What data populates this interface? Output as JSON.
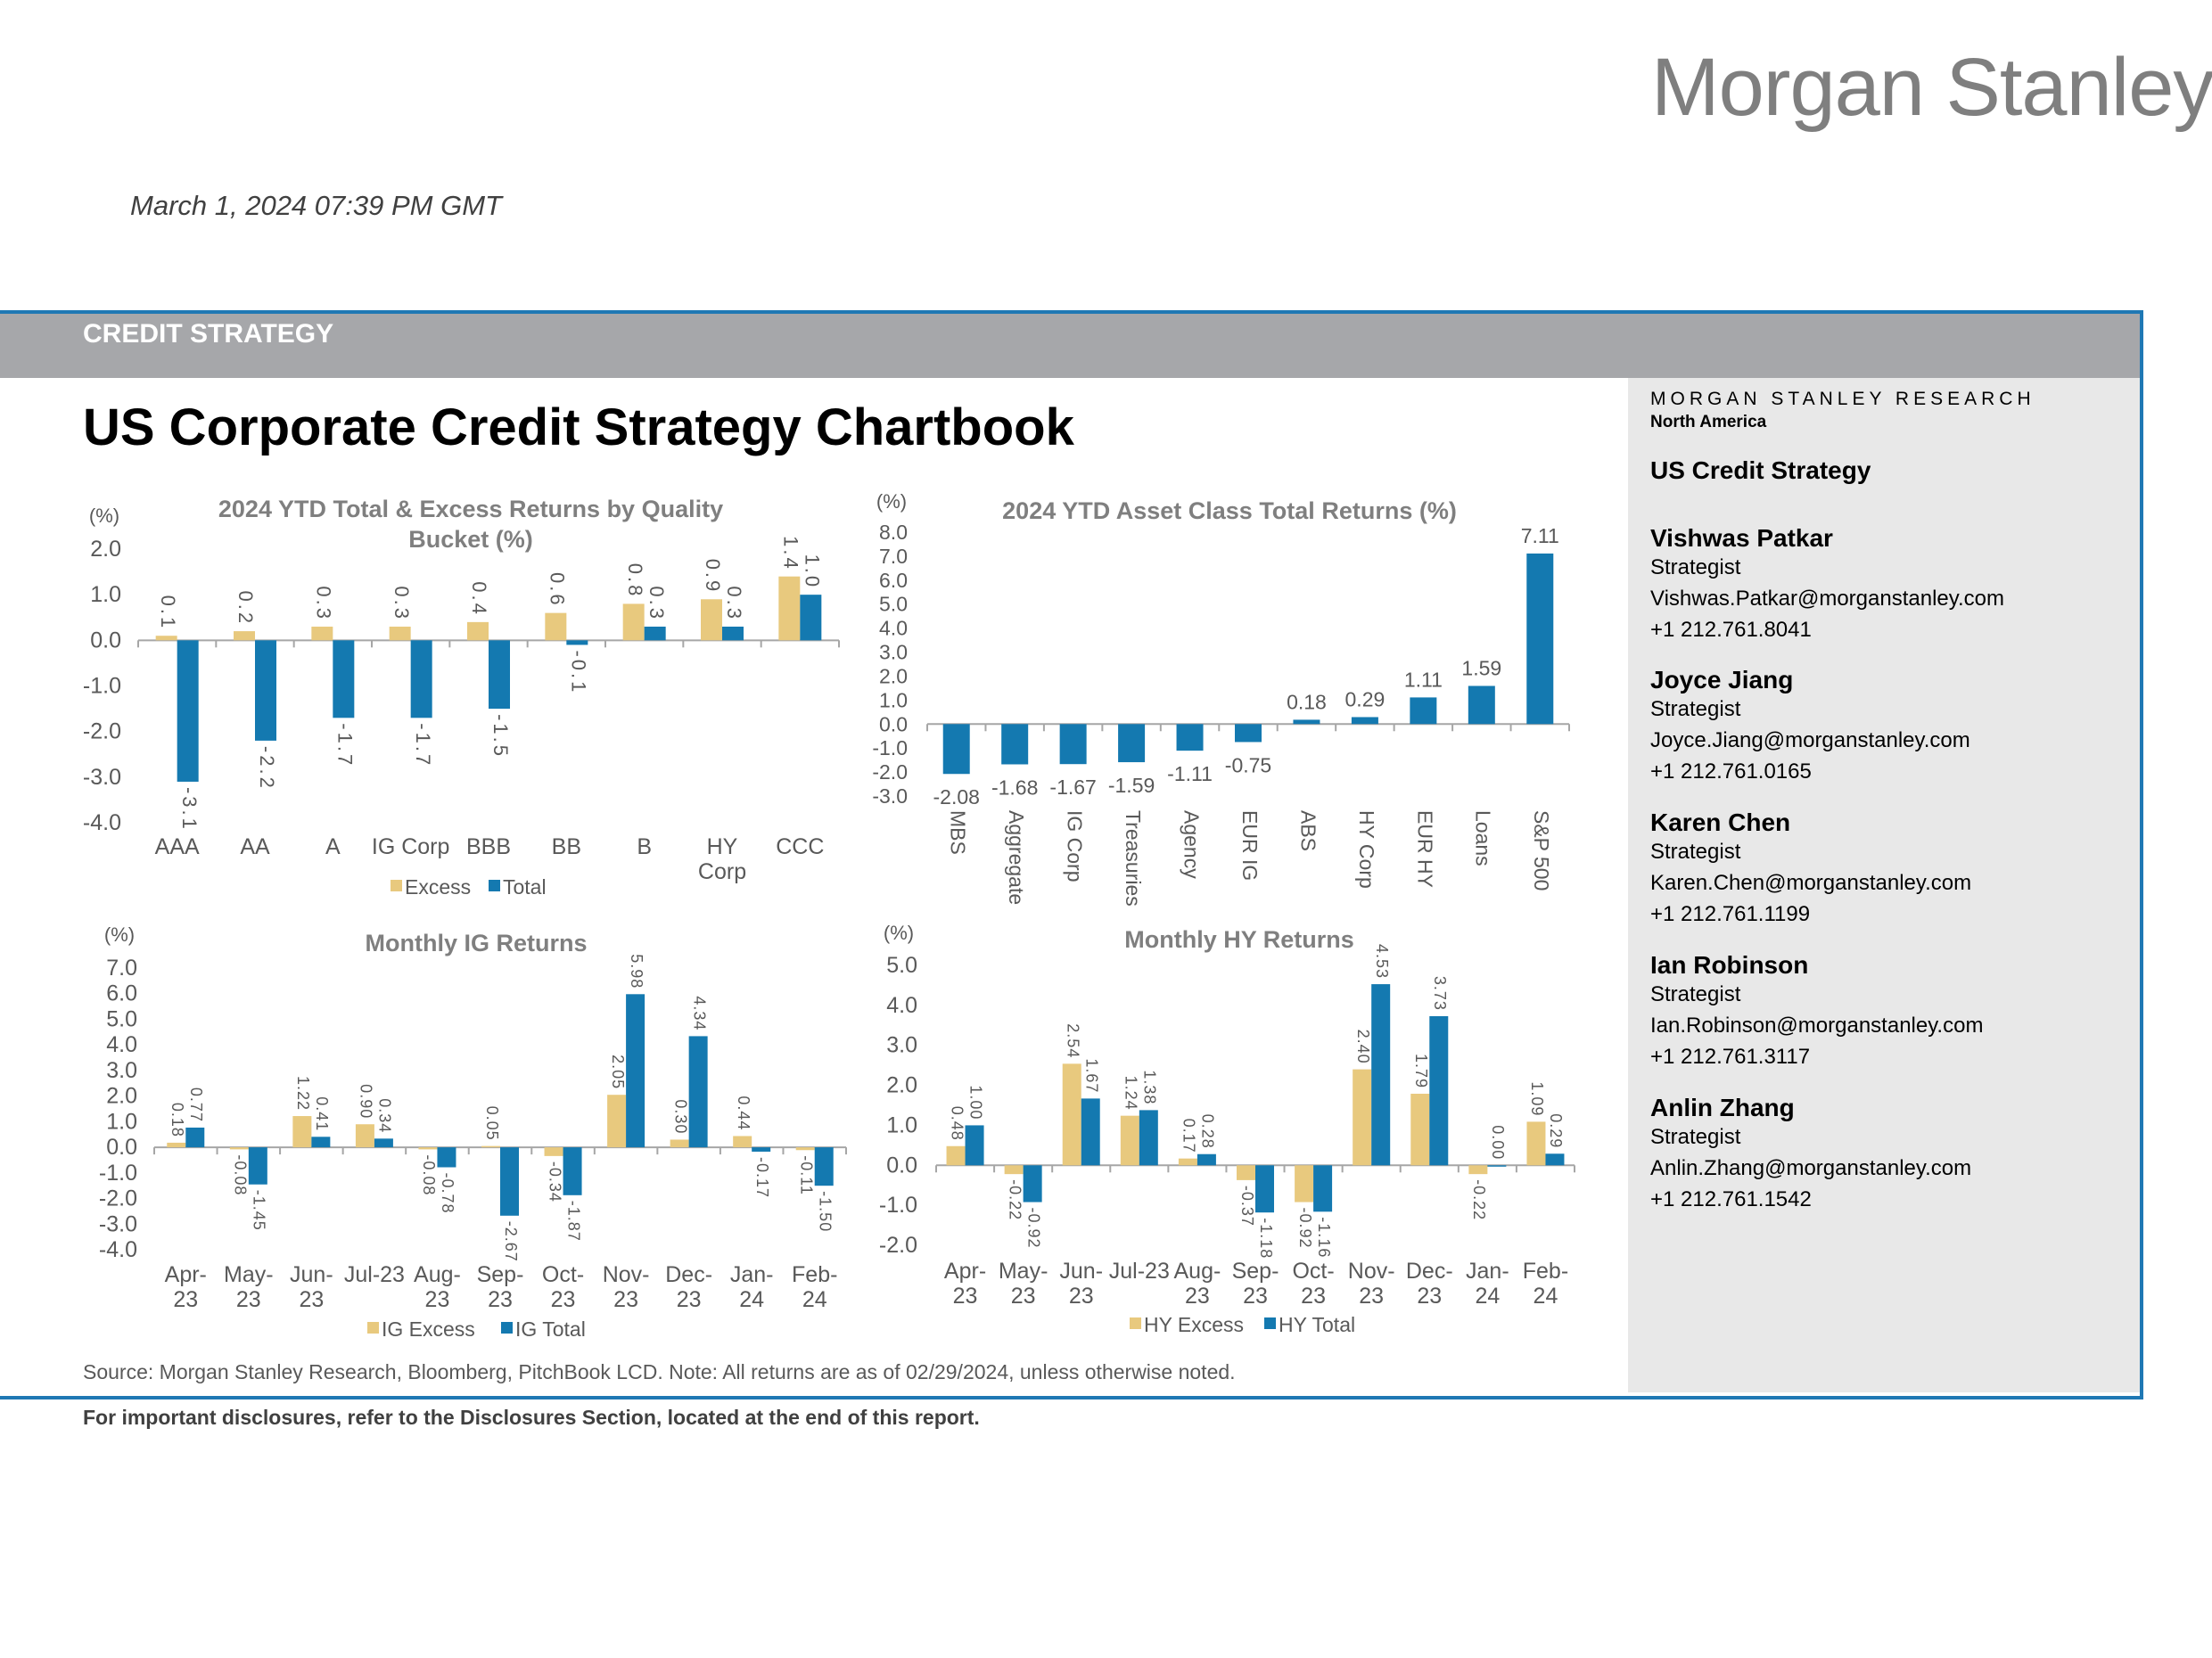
{
  "header": {
    "logo": "Morgan Stanley",
    "date": "March 1, 2024 07:39 PM GMT",
    "band_label": "CREDIT STRATEGY",
    "title": "US Corporate Credit Strategy Chartbook"
  },
  "sidebar": {
    "research": "MORGAN STANLEY RESEARCH",
    "region": "North America",
    "team": "US Credit Strategy",
    "contacts": [
      {
        "name": "Vishwas Patkar",
        "role": "Strategist",
        "email": "Vishwas.Patkar@morganstanley.com",
        "phone": "+1 212.761.8041"
      },
      {
        "name": "Joyce Jiang",
        "role": "Strategist",
        "email": "Joyce.Jiang@morganstanley.com",
        "phone": "+1 212.761.0165"
      },
      {
        "name": "Karen Chen",
        "role": "Strategist",
        "email": "Karen.Chen@morganstanley.com",
        "phone": "+1 212.761.1199"
      },
      {
        "name": "Ian Robinson",
        "role": "Strategist",
        "email": "Ian.Robinson@morganstanley.com",
        "phone": "+1 212.761.3117"
      },
      {
        "name": "Anlin Zhang",
        "role": "Strategist",
        "email": "Anlin.Zhang@morganstanley.com",
        "phone": "+1 212.761.1542"
      }
    ]
  },
  "footer": {
    "source": "Source: Morgan Stanley Research, Bloomberg, PitchBook LCD. Note: All returns are as of 02/29/2024, unless otherwise noted.",
    "disclosure": "For important disclosures, refer to the Disclosures Section, located at the end of this report."
  },
  "colors": {
    "excess": "#e8c97e",
    "total": "#1479b0",
    "band": "#a6a7aa",
    "frame": "#1f78b4",
    "sidebar": "#e8e8e8"
  },
  "chart_data": [
    {
      "type": "bar",
      "title": [
        "2024 YTD Total & Excess Returns by Quality",
        "Bucket  (%)"
      ],
      "ylabel": "(%)",
      "ylim": [
        -4.0,
        2.0
      ],
      "yticks": [
        "2.0",
        "1.0",
        "0.0",
        "-1.0",
        "-2.0",
        "-3.0",
        "-4.0"
      ],
      "categories": [
        [
          "AAA"
        ],
        [
          "AA"
        ],
        [
          "A"
        ],
        [
          "IG Corp"
        ],
        [
          "BBB"
        ],
        [
          "BB"
        ],
        [
          "B"
        ],
        [
          "HY",
          "Corp"
        ],
        [
          "CCC"
        ]
      ],
      "series": [
        {
          "name": "Excess",
          "values": [
            0.1,
            0.2,
            0.3,
            0.3,
            0.4,
            0.6,
            0.8,
            0.9,
            1.4
          ]
        },
        {
          "name": "Total",
          "values": [
            -3.1,
            -2.2,
            -1.7,
            -1.7,
            -1.5,
            -0.1,
            0.3,
            0.3,
            1.0
          ]
        }
      ],
      "legend": "bottom",
      "grid": false
    },
    {
      "type": "bar",
      "title": [
        "2024 YTD Asset Class Total Returns  (%)"
      ],
      "ylabel": "(%)",
      "ylim": [
        -3.0,
        8.0
      ],
      "yticks": [
        "8.0",
        "7.0",
        "6.0",
        "5.0",
        "4.0",
        "3.0",
        "2.0",
        "1.0",
        "0.0",
        "-1.0",
        "-2.0",
        "-3.0"
      ],
      "categories": [
        [
          "MBS"
        ],
        [
          "Aggregate"
        ],
        [
          "IG Corp"
        ],
        [
          "Treasuries"
        ],
        [
          "Agency"
        ],
        [
          "EUR IG"
        ],
        [
          "ABS"
        ],
        [
          "HY Corp"
        ],
        [
          "EUR HY"
        ],
        [
          "Loans"
        ],
        [
          "S&P 500"
        ]
      ],
      "series": [
        {
          "values": [
            -2.08,
            -1.68,
            -1.67,
            -1.59,
            -1.11,
            -0.75,
            0.18,
            0.29,
            1.11,
            1.59,
            7.11
          ]
        }
      ],
      "grid": false
    },
    {
      "type": "bar",
      "title": [
        "Monthly  IG Returns"
      ],
      "ylabel": "(%)",
      "ylim": [
        -4.0,
        7.0
      ],
      "yticks": [
        "7.0",
        "6.0",
        "5.0",
        "4.0",
        "3.0",
        "2.0",
        "1.0",
        "0.0",
        "-1.0",
        "-2.0",
        "-3.0",
        "-4.0"
      ],
      "categories": [
        [
          "Apr-",
          "23"
        ],
        [
          "May-",
          "23"
        ],
        [
          "Jun-",
          "23"
        ],
        [
          "Jul-23"
        ],
        [
          "Aug-",
          "23"
        ],
        [
          "Sep-",
          "23"
        ],
        [
          "Oct-",
          "23"
        ],
        [
          "Nov-",
          "23"
        ],
        [
          "Dec-",
          "23"
        ],
        [
          "Jan-",
          "24"
        ],
        [
          "Feb-",
          "24"
        ]
      ],
      "series": [
        {
          "name": "IG Excess",
          "values": [
            0.18,
            -0.08,
            1.22,
            0.9,
            -0.08,
            0.05,
            -0.34,
            2.05,
            0.3,
            0.44,
            -0.11
          ]
        },
        {
          "name": "IG Total",
          "values": [
            0.77,
            -1.45,
            0.41,
            0.34,
            -0.78,
            -2.67,
            -1.87,
            5.98,
            4.34,
            -0.17,
            -1.5
          ]
        }
      ],
      "legend": "bottom",
      "grid": false
    },
    {
      "type": "bar",
      "title": [
        "Monthly  HY Returns"
      ],
      "ylabel": "(%)",
      "ylim": [
        -2.0,
        5.0
      ],
      "yticks": [
        "5.0",
        "4.0",
        "3.0",
        "2.0",
        "1.0",
        "0.0",
        "-1.0",
        "-2.0"
      ],
      "categories": [
        [
          "Apr-",
          "23"
        ],
        [
          "May-",
          "23"
        ],
        [
          "Jun-",
          "23"
        ],
        [
          "Jul-23"
        ],
        [
          "Aug-",
          "23"
        ],
        [
          "Sep-",
          "23"
        ],
        [
          "Oct-",
          "23"
        ],
        [
          "Nov-",
          "23"
        ],
        [
          "Dec-",
          "23"
        ],
        [
          "Jan-",
          "24"
        ],
        [
          "Feb-",
          "24"
        ]
      ],
      "series": [
        {
          "name": "HY Excess",
          "values": [
            0.48,
            -0.22,
            2.54,
            1.24,
            0.17,
            -0.37,
            -0.92,
            2.4,
            1.79,
            -0.22,
            1.09
          ]
        },
        {
          "name": "HY Total",
          "values": [
            1.0,
            -0.92,
            1.67,
            1.38,
            0.28,
            -1.18,
            -1.16,
            4.53,
            3.73,
            0.0,
            0.29
          ]
        }
      ],
      "legend": "bottom",
      "grid": false
    }
  ]
}
